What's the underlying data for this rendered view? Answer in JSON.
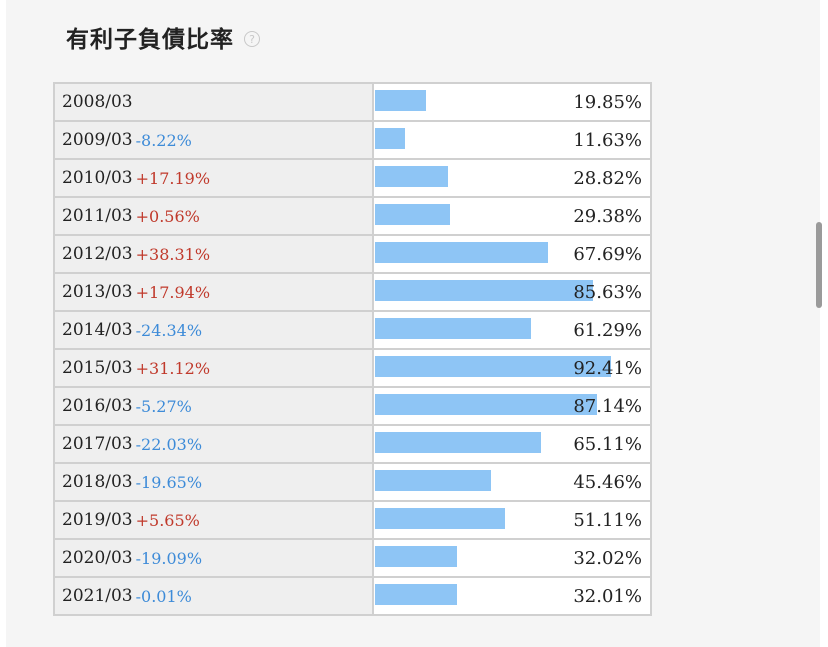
{
  "title": "有利子負債比率",
  "help_icon": "question-circle-icon",
  "colors": {
    "bar": "#8ec5f5",
    "positive_change": "#c0392b",
    "negative_change": "#3d8bd8"
  },
  "chart_data": {
    "type": "bar",
    "orientation": "horizontal",
    "title": "有利子負債比率",
    "unit": "%",
    "xlim": [
      0,
      100
    ],
    "categories": [
      "2008/03",
      "2009/03",
      "2010/03",
      "2011/03",
      "2012/03",
      "2013/03",
      "2014/03",
      "2015/03",
      "2016/03",
      "2017/03",
      "2018/03",
      "2019/03",
      "2020/03",
      "2021/03"
    ],
    "values": [
      19.85,
      11.63,
      28.82,
      29.38,
      67.69,
      85.63,
      61.29,
      92.41,
      87.14,
      65.11,
      45.46,
      51.11,
      32.02,
      32.01
    ],
    "value_labels": [
      "19.85%",
      "11.63%",
      "28.82%",
      "29.38%",
      "67.69%",
      "85.63%",
      "61.29%",
      "92.41%",
      "87.14%",
      "65.11%",
      "45.46%",
      "51.11%",
      "32.02%",
      "32.01%"
    ],
    "changes": [
      "",
      "-8.22%",
      "+17.19%",
      "+0.56%",
      "+38.31%",
      "+17.94%",
      "-24.34%",
      "+31.12%",
      "-5.27%",
      "-22.03%",
      "-19.65%",
      "+5.65%",
      "-19.09%",
      "-0.01%"
    ]
  }
}
